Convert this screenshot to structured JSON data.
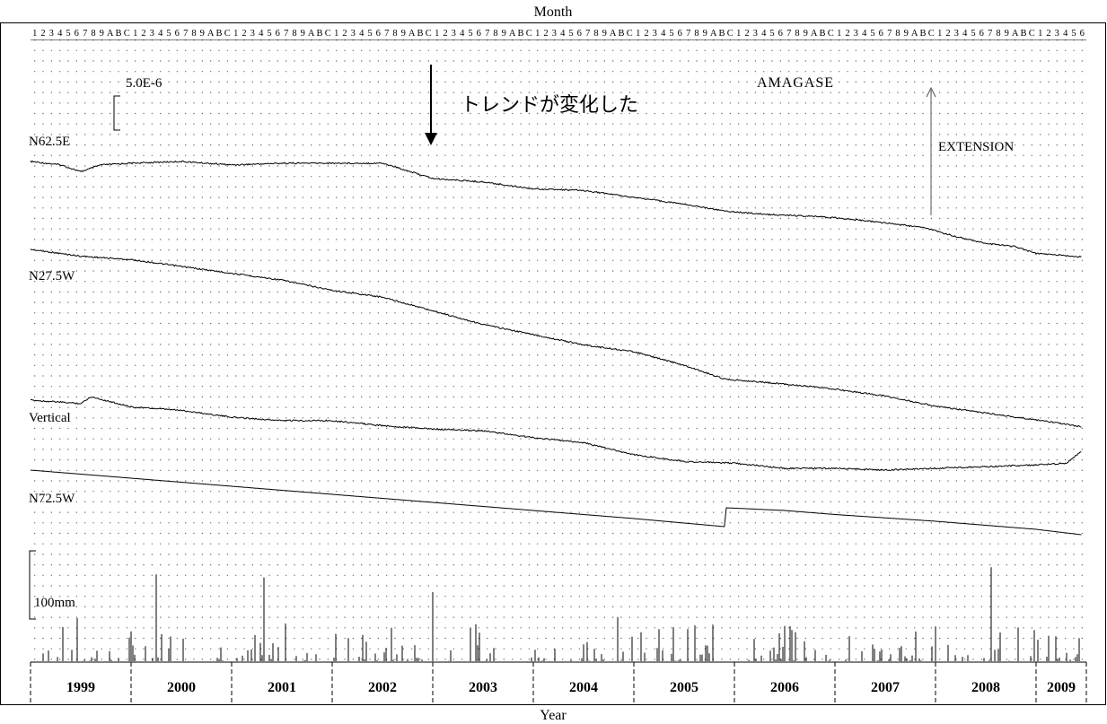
{
  "chart_data": {
    "type": "line",
    "station": "AMAGASE",
    "month_axis_title": "Month",
    "year_axis_title": "Year",
    "month_tick_labels": [
      "1",
      "2",
      "3",
      "4",
      "5",
      "6",
      "7",
      "8",
      "9",
      "A",
      "B",
      "C"
    ],
    "years": [
      "1999",
      "2000",
      "2001",
      "2002",
      "2003",
      "2004",
      "2005",
      "2006",
      "2007",
      "2008",
      "2009"
    ],
    "x_range": [
      "1999-01",
      "2009-06"
    ],
    "grid": "dotted",
    "strain_scale_label": "5.0E-6",
    "extension_label": "EXTENSION",
    "annotation": {
      "text": "トレンドが変化した",
      "date": "2002-09"
    },
    "precip_scale_label": "100mm",
    "series": [
      {
        "name": "N62.5E",
        "unit": "strain (1 bar = 5.0E-6)",
        "points": [
          [
            1999.0,
            0.0
          ],
          [
            1999.3,
            -0.2
          ],
          [
            1999.5,
            -0.6
          ],
          [
            1999.7,
            -0.2
          ],
          [
            2000.0,
            -0.1
          ],
          [
            2000.5,
            0.0
          ],
          [
            2001.0,
            -0.2
          ],
          [
            2001.5,
            -0.1
          ],
          [
            2002.0,
            -0.1
          ],
          [
            2002.5,
            -0.1
          ],
          [
            2002.67,
            -0.4
          ],
          [
            2003.0,
            -1.0
          ],
          [
            2003.5,
            -1.2
          ],
          [
            2004.0,
            -1.6
          ],
          [
            2004.5,
            -1.7
          ],
          [
            2005.0,
            -2.1
          ],
          [
            2005.5,
            -2.5
          ],
          [
            2005.9,
            -2.9
          ],
          [
            2006.3,
            -3.1
          ],
          [
            2006.7,
            -3.2
          ],
          [
            2007.0,
            -3.3
          ],
          [
            2007.5,
            -3.6
          ],
          [
            2007.9,
            -3.9
          ],
          [
            2008.2,
            -4.4
          ],
          [
            2008.5,
            -4.8
          ],
          [
            2008.8,
            -5.0
          ],
          [
            2009.0,
            -5.4
          ],
          [
            2009.25,
            -5.5
          ],
          [
            2009.45,
            -5.6
          ]
        ]
      },
      {
        "name": "N27.5W",
        "unit": "strain (1 bar = 5.0E-6)",
        "points": [
          [
            1999.0,
            0.0
          ],
          [
            1999.5,
            -0.4
          ],
          [
            2000.0,
            -0.6
          ],
          [
            2000.5,
            -1.0
          ],
          [
            2001.0,
            -1.4
          ],
          [
            2001.5,
            -1.8
          ],
          [
            2002.0,
            -2.4
          ],
          [
            2002.5,
            -2.8
          ],
          [
            2003.0,
            -3.6
          ],
          [
            2003.5,
            -4.4
          ],
          [
            2004.0,
            -5.0
          ],
          [
            2004.5,
            -5.6
          ],
          [
            2005.0,
            -6.0
          ],
          [
            2005.5,
            -6.8
          ],
          [
            2005.9,
            -7.6
          ],
          [
            2006.5,
            -7.9
          ],
          [
            2007.0,
            -8.2
          ],
          [
            2007.5,
            -8.6
          ],
          [
            2008.0,
            -9.2
          ],
          [
            2008.5,
            -9.6
          ],
          [
            2009.0,
            -10.0
          ],
          [
            2009.45,
            -10.4
          ]
        ]
      },
      {
        "name": "Vertical",
        "unit": "strain (1 bar = 5.0E-6)",
        "points": [
          [
            1999.0,
            0.0
          ],
          [
            1999.5,
            -0.2
          ],
          [
            1999.6,
            0.2
          ],
          [
            2000.0,
            -0.4
          ],
          [
            2000.5,
            -0.6
          ],
          [
            2001.0,
            -1.0
          ],
          [
            2001.5,
            -1.2
          ],
          [
            2002.0,
            -1.2
          ],
          [
            2002.5,
            -1.5
          ],
          [
            2003.0,
            -1.7
          ],
          [
            2003.5,
            -1.8
          ],
          [
            2004.0,
            -2.2
          ],
          [
            2004.5,
            -2.5
          ],
          [
            2005.0,
            -3.2
          ],
          [
            2005.5,
            -3.6
          ],
          [
            2006.0,
            -3.7
          ],
          [
            2006.5,
            -4.0
          ],
          [
            2007.0,
            -4.0
          ],
          [
            2007.5,
            -4.1
          ],
          [
            2008.0,
            -4.0
          ],
          [
            2008.5,
            -3.9
          ],
          [
            2009.0,
            -3.8
          ],
          [
            2009.3,
            -3.7
          ],
          [
            2009.45,
            -3.0
          ]
        ]
      },
      {
        "name": "N72.5W",
        "unit": "strain (1 bar = 5.0E-6)",
        "points": [
          [
            1999.0,
            0.0
          ],
          [
            2000.0,
            -0.6
          ],
          [
            2001.0,
            -1.2
          ],
          [
            2002.0,
            -1.8
          ],
          [
            2003.0,
            -2.4
          ],
          [
            2004.0,
            -3.0
          ],
          [
            2005.0,
            -3.6
          ],
          [
            2005.9,
            -4.2
          ],
          [
            2005.92,
            -2.8
          ],
          [
            2006.5,
            -3.0
          ],
          [
            2007.0,
            -3.3
          ],
          [
            2008.0,
            -3.8
          ],
          [
            2009.0,
            -4.4
          ],
          [
            2009.45,
            -4.8
          ]
        ]
      }
    ],
    "precipitation": {
      "name": "precipitation",
      "unit": "mm",
      "scale_bar_mm": 100,
      "max_mm": 140
    }
  }
}
